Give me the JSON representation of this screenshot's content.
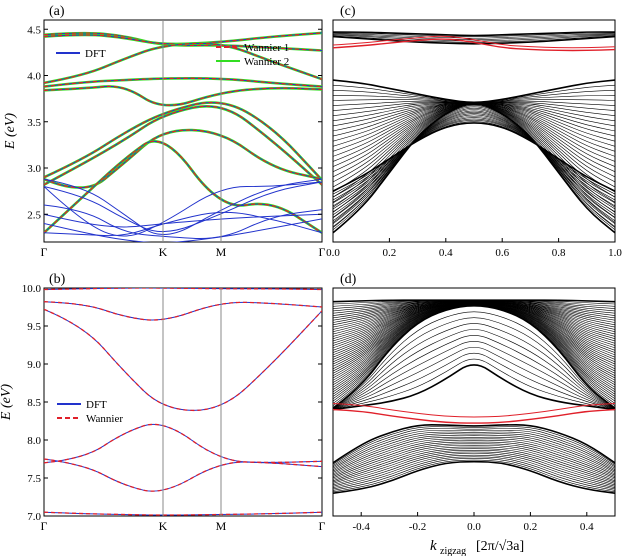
{
  "chart_data": [
    {
      "panel": "a",
      "panel_label": "(a)",
      "type": "line",
      "title": "",
      "xlabel": "",
      "ylabel": "E (eV)",
      "xticks": [
        "Γ",
        "K",
        "M",
        "Γ"
      ],
      "ylim": [
        2.2,
        4.6
      ],
      "yticks": [
        "2.5",
        "3.0",
        "3.5",
        "4.0",
        "4.5"
      ],
      "legend_entries": [
        "DFT",
        "Wannier 1",
        "Wannier 2"
      ],
      "series_colors": {
        "DFT": "#2233cc",
        "Wannier 1": "#e0202a",
        "Wannier 2": "#33dd22"
      },
      "bands": [
        [
          4.44,
          4.47,
          4.43,
          4.32,
          4.33,
          4.3,
          4.27
        ],
        [
          4.42,
          4.45,
          4.41,
          4.33,
          4.36,
          4.42,
          4.46
        ],
        [
          3.92,
          4.0,
          4.18,
          4.33,
          4.36,
          4.15,
          3.96
        ],
        [
          3.88,
          3.93,
          3.95,
          3.97,
          3.97,
          3.92,
          3.88
        ],
        [
          3.84,
          3.86,
          3.9,
          3.62,
          3.82,
          3.87,
          3.85
        ],
        [
          2.9,
          3.1,
          3.38,
          3.6,
          3.76,
          3.45,
          2.87
        ],
        [
          2.82,
          3.05,
          3.3,
          3.58,
          3.72,
          3.3,
          2.82
        ],
        [
          2.88,
          2.7,
          3.05,
          3.42,
          3.4,
          3.0,
          2.88
        ],
        [
          2.3,
          2.7,
          3.1,
          3.4,
          2.55,
          2.65,
          2.3
        ]
      ],
      "extra_dft_bands": [
        [
          2.88,
          2.8,
          2.5,
          2.2,
          2.55,
          2.8,
          2.88
        ],
        [
          2.8,
          2.7,
          2.45,
          2.26,
          2.5,
          2.75,
          2.85
        ],
        [
          2.6,
          2.55,
          2.3,
          2.26,
          2.22,
          2.48,
          2.55
        ],
        [
          2.8,
          2.4,
          2.22,
          2.4,
          2.8,
          2.8,
          2.85
        ],
        [
          2.5,
          2.4,
          2.35,
          2.4,
          2.45,
          2.48,
          2.5
        ],
        [
          2.4,
          2.3,
          2.22,
          2.18,
          2.25,
          2.35,
          2.45
        ],
        [
          2.3,
          2.28,
          2.26,
          2.4,
          2.55,
          2.45,
          2.3
        ]
      ]
    },
    {
      "panel": "b",
      "panel_label": "(b)",
      "type": "line",
      "title": "",
      "xlabel": "",
      "ylabel": "E (eV)",
      "xticks": [
        "Γ",
        "K",
        "M",
        "Γ"
      ],
      "ylim": [
        7.0,
        10.0
      ],
      "yticks": [
        "7.0",
        "7.5",
        "8.0",
        "8.5",
        "9.0",
        "9.5",
        "10.0"
      ],
      "legend_entries": [
        "DFT",
        "Wannier"
      ],
      "series_colors": {
        "DFT": "#2233cc",
        "Wannier": "#e0202a"
      },
      "bands": [
        [
          9.98,
          9.99,
          10.0,
          10.0,
          9.99,
          9.99,
          9.98
        ],
        [
          9.82,
          9.8,
          9.62,
          9.55,
          9.82,
          9.8,
          9.75
        ],
        [
          9.72,
          9.5,
          8.9,
          8.4,
          8.38,
          9.0,
          9.7
        ],
        [
          7.7,
          7.75,
          8.1,
          8.27,
          7.72,
          7.7,
          7.65
        ],
        [
          7.75,
          7.68,
          7.4,
          7.28,
          7.72,
          7.7,
          7.72
        ],
        [
          7.05,
          7.03,
          7.02,
          7.01,
          7.02,
          7.03,
          7.05
        ]
      ]
    },
    {
      "panel": "c",
      "panel_label": "(c)",
      "type": "line",
      "title": "",
      "xlabel": "",
      "ylabel": "",
      "xlim": [
        0.0,
        1.0
      ],
      "xticks": [
        "0.0",
        "0.2",
        "0.4",
        "0.6",
        "0.8",
        "1.0"
      ],
      "line_colors": {
        "bulk": "#000000",
        "edge": "#e0202a"
      },
      "edge_state": [
        4.3,
        4.32,
        4.35,
        4.38,
        4.4,
        4.36,
        4.3,
        4.28,
        4.27,
        4.27,
        4.28
      ],
      "bulk_bands": [
        [
          4.47,
          4.47,
          4.46,
          4.45,
          4.44,
          4.43,
          4.44,
          4.45,
          4.46,
          4.47,
          4.47
        ],
        [
          4.42,
          4.4,
          4.38,
          4.36,
          4.35,
          4.34,
          4.35,
          4.36,
          4.38,
          4.4,
          4.42
        ],
        [
          3.95,
          3.92,
          3.86,
          3.8,
          3.74,
          3.7,
          3.74,
          3.8,
          3.86,
          3.92,
          3.95
        ],
        [
          2.3,
          2.55,
          2.95,
          3.35,
          3.6,
          3.72,
          3.6,
          3.35,
          2.95,
          2.55,
          2.3
        ],
        [
          2.75,
          2.9,
          3.1,
          3.3,
          3.45,
          3.5,
          3.45,
          3.3,
          3.1,
          2.9,
          2.75
        ]
      ]
    },
    {
      "panel": "d",
      "panel_label": "(d)",
      "type": "line",
      "title": "",
      "xlabel": "k_zigzag [2π/√3a]",
      "xlabel_main": "k",
      "xlabel_sub": "zigzag",
      "xlabel_bracket": "[2π/√3a]",
      "ylabel": "",
      "xlim": [
        -0.5,
        0.5
      ],
      "xticks": [
        "-0.4",
        "-0.2",
        "0.0",
        "0.2",
        "0.4"
      ],
      "line_colors": {
        "bulk": "#000000",
        "edge": "#e0202a"
      },
      "edge_state": [
        8.4,
        8.38,
        8.32,
        8.27,
        8.23,
        8.22,
        8.23,
        8.27,
        8.32,
        8.38,
        8.4
      ],
      "bulk_bands": [
        [
          9.82,
          9.83,
          9.84,
          9.84,
          9.84,
          9.84,
          9.84,
          9.84,
          9.84,
          9.83,
          9.82
        ],
        [
          8.42,
          8.7,
          9.2,
          9.55,
          9.72,
          9.78,
          9.72,
          9.55,
          9.2,
          8.7,
          8.42
        ],
        [
          8.4,
          8.45,
          8.5,
          8.6,
          8.8,
          9.05,
          8.8,
          8.6,
          8.5,
          8.45,
          8.4
        ],
        [
          7.7,
          7.95,
          8.1,
          8.2,
          8.2,
          8.18,
          8.2,
          8.2,
          8.1,
          7.95,
          7.7
        ],
        [
          7.3,
          7.35,
          7.45,
          7.6,
          7.7,
          7.72,
          7.7,
          7.6,
          7.45,
          7.35,
          7.3
        ]
      ]
    }
  ]
}
